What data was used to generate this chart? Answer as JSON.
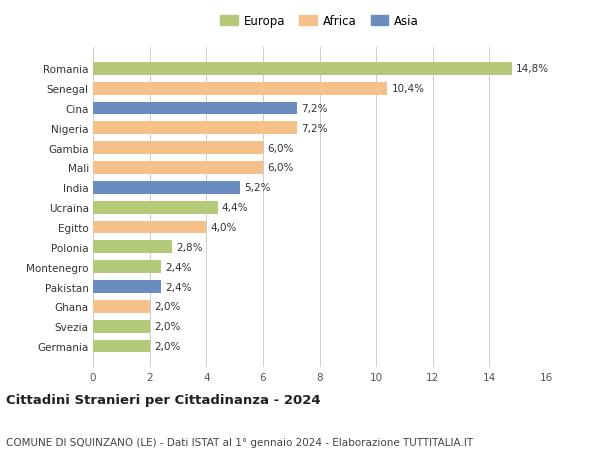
{
  "categories": [
    "Romania",
    "Senegal",
    "Cina",
    "Nigeria",
    "Gambia",
    "Mali",
    "India",
    "Ucraina",
    "Egitto",
    "Polonia",
    "Montenegro",
    "Pakistan",
    "Ghana",
    "Svezia",
    "Germania"
  ],
  "values": [
    14.8,
    10.4,
    7.2,
    7.2,
    6.0,
    6.0,
    5.2,
    4.4,
    4.0,
    2.8,
    2.4,
    2.4,
    2.0,
    2.0,
    2.0
  ],
  "continents": [
    "Europa",
    "Africa",
    "Asia",
    "Africa",
    "Africa",
    "Africa",
    "Asia",
    "Europa",
    "Africa",
    "Europa",
    "Europa",
    "Asia",
    "Africa",
    "Europa",
    "Europa"
  ],
  "colors": {
    "Europa": "#b5c97a",
    "Africa": "#f5c08a",
    "Asia": "#6b8cbf"
  },
  "labels": [
    "14,8%",
    "10,4%",
    "7,2%",
    "7,2%",
    "6,0%",
    "6,0%",
    "5,2%",
    "4,4%",
    "4,0%",
    "2,8%",
    "2,4%",
    "2,4%",
    "2,0%",
    "2,0%",
    "2,0%"
  ],
  "xlim": [
    0,
    16
  ],
  "xticks": [
    0,
    2,
    4,
    6,
    8,
    10,
    12,
    14,
    16
  ],
  "title": "Cittadini Stranieri per Cittadinanza - 2024",
  "subtitle": "COMUNE DI SQUINZANO (LE) - Dati ISTAT al 1° gennaio 2024 - Elaborazione TUTTITALIA.IT",
  "legend_order": [
    "Europa",
    "Africa",
    "Asia"
  ],
  "bg_color": "#ffffff",
  "grid_color": "#cccccc",
  "bar_height": 0.65,
  "label_fontsize": 7.5,
  "title_fontsize": 9.5,
  "subtitle_fontsize": 7.5,
  "ytick_fontsize": 7.5,
  "xtick_fontsize": 7.5,
  "legend_fontsize": 8.5
}
